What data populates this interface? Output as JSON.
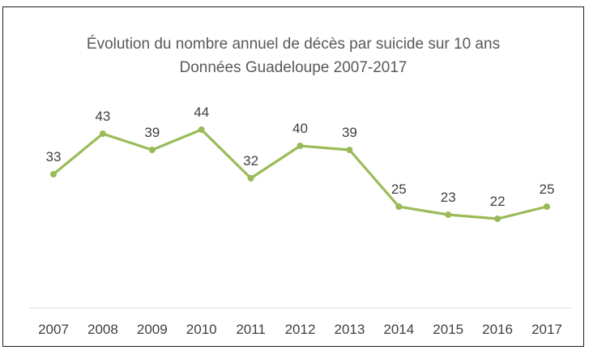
{
  "chart_data": {
    "type": "line",
    "title": "Évolution du nombre annuel de décès par suicide sur 10 ans",
    "subtitle": "Données Guadeloupe 2007-2017",
    "categories": [
      "2007",
      "2008",
      "2009",
      "2010",
      "2011",
      "2012",
      "2013",
      "2014",
      "2015",
      "2016",
      "2017"
    ],
    "series": [
      {
        "values": [
          33,
          43,
          39,
          44,
          32,
          40,
          39,
          25,
          23,
          22,
          25
        ]
      }
    ],
    "xlabel": "",
    "ylabel": "",
    "ylim": [
      0,
      50
    ],
    "grid": false,
    "legend": "none",
    "data_labels": true,
    "y_axis_visible": false,
    "colors": {
      "line": "#9bbb59",
      "text": "#404040",
      "title": "#595959",
      "axis": "#d9d9d9",
      "frame": "#1f1f1f"
    }
  }
}
